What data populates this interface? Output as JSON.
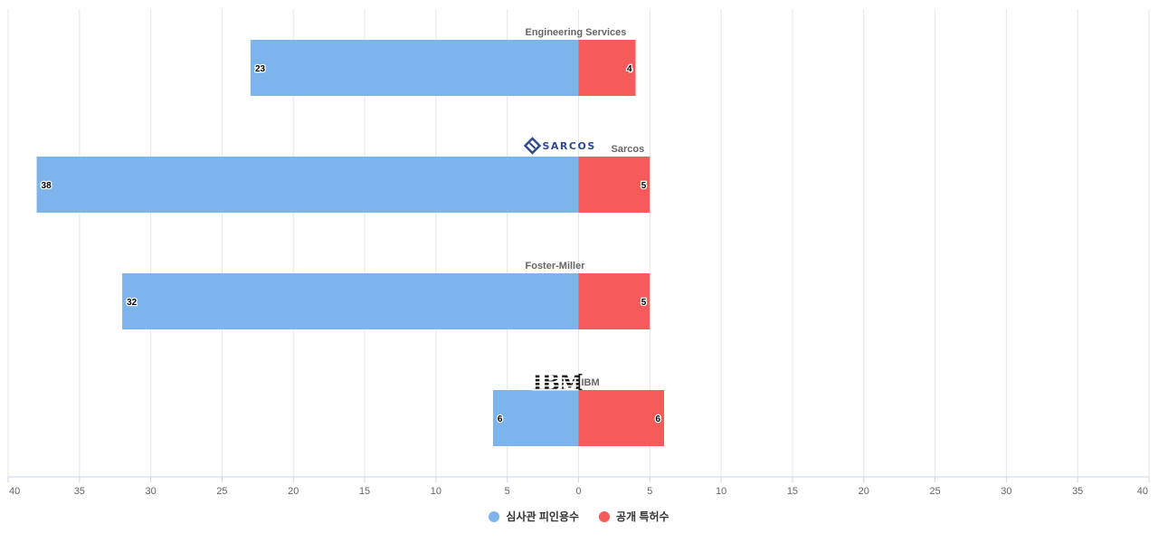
{
  "chart_data": {
    "type": "bar",
    "orientation": "horizontal",
    "layout": "diverging",
    "categories": [
      "Engineering Services",
      "Sarcos",
      "Foster-Miller",
      "IBM"
    ],
    "series": [
      {
        "name": "심사관 피인용수",
        "values": [
          23,
          38,
          32,
          6
        ],
        "color": "#7cb4eb",
        "side": "left"
      },
      {
        "name": "공개 특허수",
        "values": [
          4,
          5,
          5,
          6
        ],
        "color": "#f55b5b",
        "side": "right"
      }
    ],
    "xlim": [
      -40,
      40
    ],
    "x_ticks": [
      "40",
      "35",
      "30",
      "25",
      "20",
      "15",
      "10",
      "5",
      "0",
      "5",
      "10",
      "15",
      "20",
      "25",
      "30",
      "35",
      "40"
    ],
    "grid": true,
    "legend_position": "bottom-center",
    "logos": {
      "Sarcos": "SARCOS",
      "IBM": "IBM"
    }
  }
}
